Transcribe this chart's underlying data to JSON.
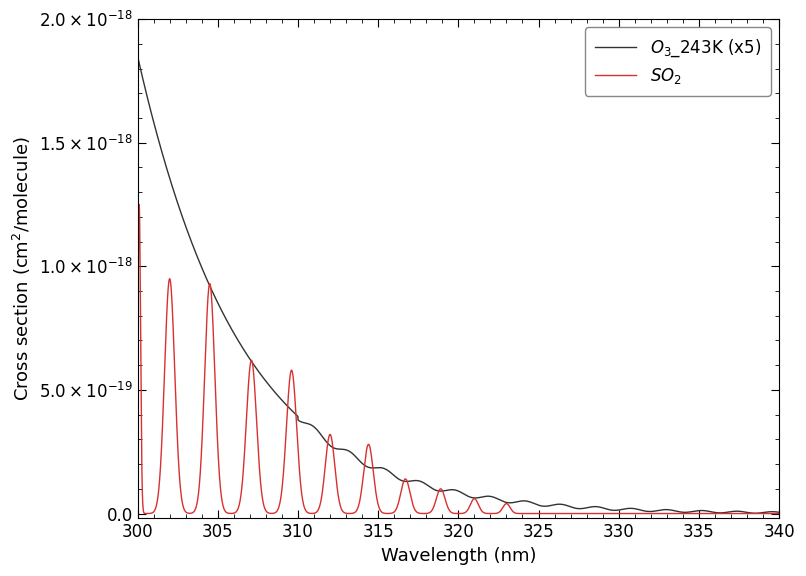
{
  "title": "",
  "xlabel": "Wavelength (nm)",
  "ylabel": "Cross section (cm$^2$/molecule)",
  "xlim": [
    300,
    340
  ],
  "ylim": [
    -2e-20,
    2e-18
  ],
  "yticks": [
    0.0,
    5e-19,
    1e-18,
    1.5e-18,
    2e-18
  ],
  "ytick_labels": [
    "0.0",
    "5.0×10⁻¹⁹",
    "1.0×10⁻¹⁸",
    "1.5×10⁻¹⁸",
    "2.0×10⁻¹⁸"
  ],
  "xticks": [
    300,
    305,
    310,
    315,
    320,
    325,
    330,
    335,
    340
  ],
  "o3_color": "#333333",
  "so2_color": "#d93030",
  "o3_label": "$O_3$_243K (x5)",
  "so2_label": "$SO_2$",
  "legend_loc": "upper right",
  "linewidth": 1.0,
  "background_color": "#ffffff",
  "tick_fontsize": 12,
  "label_fontsize": 13
}
